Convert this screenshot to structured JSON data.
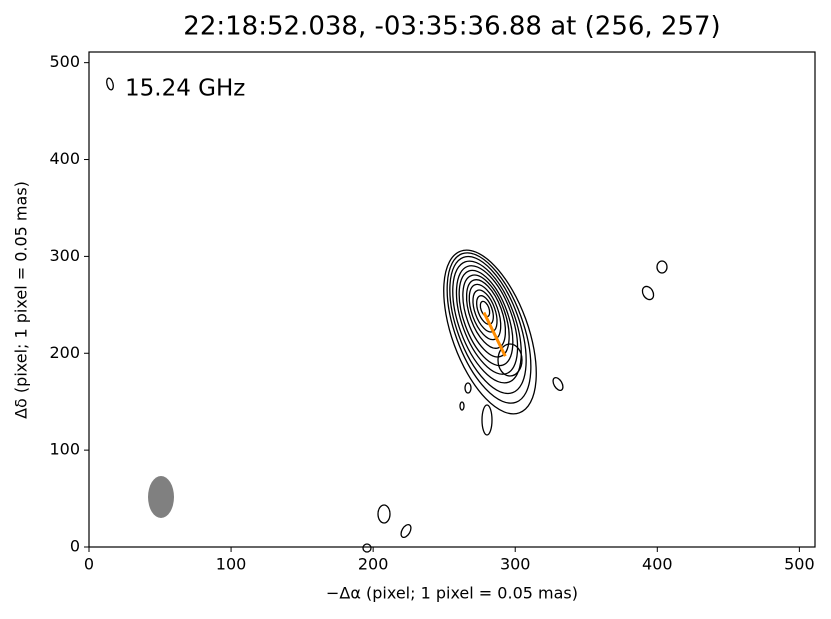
{
  "chart_data": {
    "type": "contour",
    "title": "22:18:52.038, -03:35:36.88 at (256, 257)",
    "annotation": "15.24 GHz",
    "xlabel": "−Δα (pixel; 1 pixel = 0.05 mas)",
    "ylabel": "Δδ (pixel; 1 pixel = 0.05 mas)",
    "xlim": [
      0,
      511
    ],
    "ylim": [
      0,
      511
    ],
    "xticks": [
      0,
      100,
      200,
      300,
      400,
      500
    ],
    "yticks": [
      0,
      100,
      200,
      300,
      400,
      500
    ],
    "series": [
      {
        "color": "#ff8c00",
        "x": [
          278,
          293
        ],
        "values": [
          242,
          197
        ]
      }
    ]
  }
}
